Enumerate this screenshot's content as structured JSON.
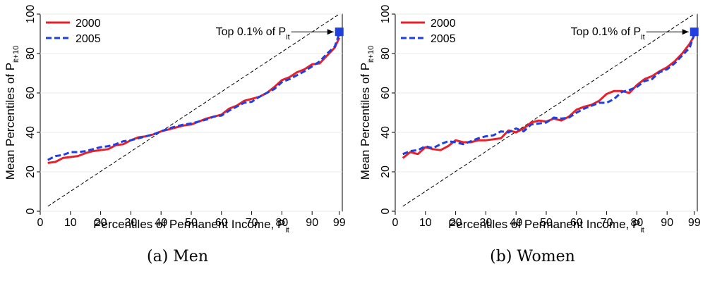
{
  "chart_data": [
    {
      "type": "line",
      "caption": "(a) Men",
      "xlabel": "Percentiles of Permanent Income, P",
      "xlabel_sub": "it",
      "ylabel": "Mean Percentiles of P",
      "ylabel_sub": "it+10",
      "xlim": [
        0,
        100
      ],
      "ylim": [
        0,
        100
      ],
      "xticks": [
        0,
        10,
        20,
        30,
        40,
        50,
        60,
        70,
        80,
        90,
        99
      ],
      "yticks": [
        0,
        20,
        40,
        60,
        80,
        100
      ],
      "grid": true,
      "legend_position": "top-left",
      "annotation": {
        "text": "Top 0.1% of P",
        "sub": "it",
        "x": 99,
        "y": 91
      },
      "top_marker": {
        "x": 99,
        "y": 91
      },
      "reference_line": {
        "from": [
          2.5,
          2.5
        ],
        "to": [
          99,
          100
        ]
      },
      "x": [
        2.5,
        5,
        7.5,
        10,
        12.5,
        15,
        17.5,
        20,
        22.5,
        25,
        27.5,
        30,
        32.5,
        35,
        37.5,
        40,
        42.5,
        45,
        47.5,
        50,
        52.5,
        55,
        57.5,
        60,
        62.5,
        65,
        67.5,
        70,
        72.5,
        75,
        77.5,
        80,
        82.5,
        85,
        87.5,
        90,
        92.5,
        95,
        97.5,
        99
      ],
      "series": [
        {
          "name": "2000",
          "color": "#e8202a",
          "style": "solid",
          "values": [
            24.5,
            25,
            27,
            27.5,
            28,
            29.5,
            30.5,
            31,
            31.5,
            33.5,
            34,
            36,
            37.5,
            38,
            39,
            40.5,
            41.5,
            42.5,
            43.5,
            44,
            45.5,
            47,
            48,
            49,
            52,
            53.5,
            56,
            57,
            58,
            60,
            63,
            66.5,
            68,
            70.5,
            72,
            74.5,
            75,
            79,
            83,
            88
          ]
        },
        {
          "name": "2005",
          "color": "#1f3fe0",
          "style": "dashed",
          "values": [
            26,
            28,
            28.5,
            30,
            30,
            30.5,
            31.5,
            32.5,
            33,
            34,
            35.5,
            36,
            37,
            38,
            39,
            40.5,
            42,
            43,
            44,
            44.5,
            45.5,
            46.5,
            48,
            48.5,
            51,
            53,
            55,
            55.5,
            58,
            60,
            62,
            65.5,
            67,
            69,
            71,
            73.5,
            76,
            80,
            83.5,
            90
          ]
        }
      ],
      "marker_color": "#1f3fe0"
    },
    {
      "type": "line",
      "caption": "(b) Women",
      "xlabel": "Percentiles of Permanent Income, P",
      "xlabel_sub": "it",
      "ylabel": "Mean Percentiles of P",
      "ylabel_sub": "it+10",
      "xlim": [
        0,
        100
      ],
      "ylim": [
        0,
        100
      ],
      "xticks": [
        0,
        10,
        20,
        30,
        40,
        50,
        60,
        70,
        80,
        90,
        99
      ],
      "yticks": [
        0,
        20,
        40,
        60,
        80,
        100
      ],
      "grid": true,
      "legend_position": "top-left",
      "annotation": {
        "text": "Top 0.1% of P",
        "sub": "it",
        "x": 99,
        "y": 91
      },
      "top_marker": {
        "x": 99,
        "y": 91
      },
      "reference_line": {
        "from": [
          2.5,
          2.5
        ],
        "to": [
          99,
          100
        ]
      },
      "x": [
        2.5,
        5,
        7.5,
        10,
        12.5,
        15,
        17.5,
        20,
        22.5,
        25,
        27.5,
        30,
        32.5,
        35,
        37.5,
        40,
        42.5,
        45,
        47.5,
        50,
        52.5,
        55,
        57.5,
        60,
        62.5,
        65,
        67.5,
        70,
        72.5,
        75,
        77.5,
        80,
        82.5,
        85,
        87.5,
        90,
        92.5,
        95,
        97.5,
        99
      ],
      "series": [
        {
          "name": "2000",
          "color": "#e8202a",
          "style": "solid",
          "values": [
            27,
            30,
            29,
            32.5,
            31.5,
            31,
            33,
            36,
            35,
            35,
            36,
            36,
            36.5,
            37,
            41,
            40,
            42,
            45,
            46,
            45.5,
            47,
            46,
            48,
            51.5,
            53,
            54,
            56,
            59.5,
            61,
            61,
            60,
            64,
            67,
            68.5,
            71,
            73,
            76,
            80,
            85,
            89
          ]
        },
        {
          "name": "2005",
          "color": "#1f3fe0",
          "style": "dashed",
          "values": [
            29,
            30.5,
            31,
            33,
            32,
            34,
            35.5,
            35,
            34,
            35.5,
            37,
            38,
            38.5,
            40.5,
            40,
            42,
            40.5,
            44,
            44.5,
            45,
            47.5,
            47,
            47.5,
            50,
            52,
            53.5,
            55,
            55,
            57,
            60.5,
            61.5,
            63,
            66,
            67,
            70.5,
            72,
            75,
            79,
            83,
            90
          ]
        }
      ],
      "marker_color": "#1f3fe0"
    }
  ]
}
